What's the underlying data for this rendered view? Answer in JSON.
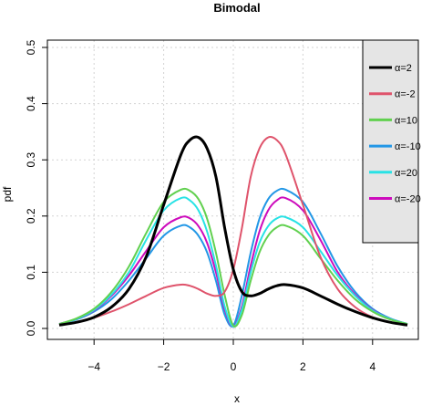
{
  "chart_data": {
    "type": "line",
    "title": "Bimodal",
    "xlabel": "x",
    "ylabel": "pdf",
    "xlim": [
      -5,
      5
    ],
    "ylim": [
      0,
      0.5
    ],
    "xticks": [
      -4,
      -2,
      0,
      2,
      4
    ],
    "yticks": [
      0.0,
      0.1,
      0.2,
      0.3,
      0.4,
      0.5
    ],
    "grid": true,
    "legend_position": "top-right",
    "x": [
      -5,
      -4.5,
      -4,
      -3.5,
      -3,
      -2.5,
      -2,
      -1.5,
      -1.25,
      -1,
      -0.75,
      -0.5,
      -0.25,
      0,
      0.25,
      0.5,
      0.75,
      1,
      1.25,
      1.5,
      2,
      2.5,
      3,
      3.5,
      4,
      4.5,
      5
    ],
    "series": [
      {
        "name": "α=2",
        "color": "#000000",
        "values": [
          0.006,
          0.011,
          0.02,
          0.038,
          0.07,
          0.128,
          0.22,
          0.31,
          0.335,
          0.34,
          0.32,
          0.27,
          0.18,
          0.105,
          0.065,
          0.058,
          0.062,
          0.07,
          0.076,
          0.078,
          0.072,
          0.058,
          0.043,
          0.03,
          0.019,
          0.011,
          0.006
        ]
      },
      {
        "name": "α=-2",
        "color": "#df536b",
        "values": [
          0.006,
          0.011,
          0.019,
          0.03,
          0.043,
          0.058,
          0.072,
          0.078,
          0.076,
          0.07,
          0.062,
          0.058,
          0.065,
          0.105,
          0.18,
          0.27,
          0.32,
          0.34,
          0.335,
          0.31,
          0.22,
          0.128,
          0.07,
          0.038,
          0.02,
          0.011,
          0.006
        ]
      },
      {
        "name": "α=10",
        "color": "#61d04f",
        "values": [
          0.008,
          0.018,
          0.035,
          0.065,
          0.11,
          0.17,
          0.225,
          0.247,
          0.245,
          0.23,
          0.195,
          0.135,
          0.06,
          0.005,
          0.025,
          0.085,
          0.135,
          0.165,
          0.18,
          0.183,
          0.165,
          0.125,
          0.085,
          0.052,
          0.03,
          0.016,
          0.008
        ]
      },
      {
        "name": "α=-10",
        "color": "#2297e6",
        "values": [
          0.008,
          0.016,
          0.03,
          0.052,
          0.085,
          0.125,
          0.165,
          0.183,
          0.18,
          0.165,
          0.135,
          0.085,
          0.025,
          0.005,
          0.06,
          0.135,
          0.195,
          0.23,
          0.245,
          0.247,
          0.225,
          0.17,
          0.11,
          0.065,
          0.035,
          0.018,
          0.008
        ]
      },
      {
        "name": "α=20",
        "color": "#28e2e5",
        "values": [
          0.008,
          0.017,
          0.033,
          0.06,
          0.1,
          0.158,
          0.21,
          0.232,
          0.228,
          0.21,
          0.172,
          0.112,
          0.04,
          0.003,
          0.035,
          0.1,
          0.152,
          0.182,
          0.196,
          0.198,
          0.18,
          0.138,
          0.094,
          0.058,
          0.032,
          0.017,
          0.008
        ]
      },
      {
        "name": "α=-20",
        "color": "#cd0bbc",
        "values": [
          0.008,
          0.017,
          0.032,
          0.058,
          0.094,
          0.138,
          0.18,
          0.198,
          0.196,
          0.182,
          0.152,
          0.1,
          0.035,
          0.003,
          0.04,
          0.112,
          0.172,
          0.21,
          0.228,
          0.232,
          0.21,
          0.158,
          0.1,
          0.06,
          0.033,
          0.017,
          0.008
        ]
      }
    ]
  }
}
